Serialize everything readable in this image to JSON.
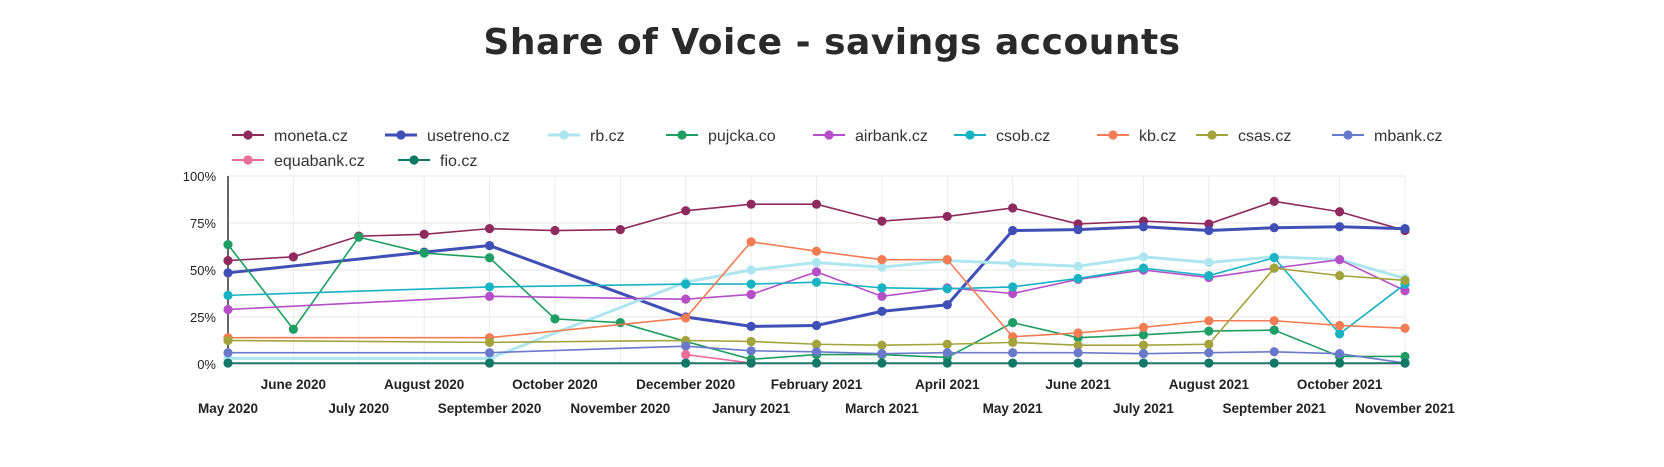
{
  "chart_data": {
    "type": "line",
    "title": "Share of Voice - savings accounts",
    "xlabel": "",
    "ylabel": "",
    "ylim": [
      0,
      100
    ],
    "y_ticks": [
      "0%",
      "25%",
      "50%",
      "75%",
      "100%"
    ],
    "grid": true,
    "legend_position": "top-left",
    "categories": [
      "May 2020",
      "June 2020",
      "July 2020",
      "August 2020",
      "September 2020",
      "October 2020",
      "November 2020",
      "December 2020",
      "Janury 2021",
      "February 2021",
      "March 2021",
      "April 2021",
      "May 2021",
      "June 2021",
      "July 2021",
      "August 2021",
      "September 2021",
      "October 2021",
      "November 2021"
    ],
    "series": [
      {
        "name": "moneta.cz",
        "color": "#8e2a5e",
        "values": [
          55,
          57,
          68,
          69,
          72,
          71,
          71.5,
          81.5,
          85,
          85,
          76,
          78.5,
          83,
          74.5,
          76,
          74.5,
          86.5,
          81,
          71
        ]
      },
      {
        "name": "usetreno.cz",
        "color": "#3f4fb5",
        "values": [
          48.5,
          null,
          null,
          59.5,
          63,
          null,
          null,
          25,
          20,
          20.5,
          28,
          31.5,
          71,
          71.5,
          73,
          71,
          72.5,
          73,
          72
        ]
      },
      {
        "name": "rb.cz",
        "color": "#aee6f0",
        "values": [
          3,
          null,
          null,
          null,
          3,
          null,
          null,
          43.5,
          50,
          54,
          51.5,
          55,
          53.5,
          52,
          57,
          54,
          57,
          55.5,
          45.5
        ]
      },
      {
        "name": "pujcka.co",
        "color": "#1e9e62",
        "values": [
          63.5,
          18.5,
          67.5,
          59,
          56.5,
          24,
          22,
          12,
          2.5,
          5,
          5,
          3.5,
          22,
          14,
          15.5,
          17.5,
          18,
          4,
          4
        ]
      },
      {
        "name": "airbank.cz",
        "color": "#b44fc8",
        "values": [
          29,
          null,
          null,
          null,
          36,
          null,
          null,
          34.5,
          37,
          49,
          36,
          40.5,
          37.5,
          45,
          50,
          46,
          51,
          55.5,
          39
        ]
      },
      {
        "name": "csob.cz",
        "color": "#17b3c3",
        "values": [
          36.5,
          null,
          null,
          null,
          41,
          null,
          null,
          42.5,
          42.5,
          43.5,
          40.5,
          40,
          41,
          45.5,
          51,
          47,
          56.5,
          16,
          42.5
        ]
      },
      {
        "name": "kb.cz",
        "color": "#f47c54",
        "values": [
          14,
          null,
          null,
          null,
          14,
          null,
          null,
          24.5,
          65,
          60,
          55.5,
          55.5,
          14.5,
          16.5,
          19.5,
          23,
          23,
          20.5,
          19
        ]
      },
      {
        "name": "csas.cz",
        "color": "#a3a33c",
        "values": [
          12.5,
          null,
          null,
          null,
          11.5,
          null,
          null,
          12.5,
          12,
          10.5,
          10,
          10.5,
          11.5,
          10,
          10,
          10.5,
          51,
          47,
          44.5
        ]
      },
      {
        "name": "mbank.cz",
        "color": "#6b79cb",
        "values": [
          6,
          null,
          null,
          null,
          6,
          null,
          null,
          9.5,
          7,
          6.5,
          5.5,
          6,
          6,
          6,
          5.5,
          6,
          6.5,
          5.5,
          0.5
        ]
      },
      {
        "name": "equabank.cz",
        "color": "#ec6d9a",
        "values": [
          null,
          null,
          null,
          null,
          null,
          null,
          null,
          5,
          0.5,
          null,
          null,
          null,
          null,
          null,
          null,
          null,
          null,
          null,
          null
        ]
      },
      {
        "name": "fio.cz",
        "color": "#117868",
        "values": [
          0.5,
          null,
          null,
          null,
          0.5,
          null,
          null,
          0.5,
          0.5,
          0.5,
          0.5,
          0.5,
          0.5,
          0.5,
          0.5,
          0.5,
          0.5,
          0.5,
          0.5
        ]
      }
    ]
  }
}
